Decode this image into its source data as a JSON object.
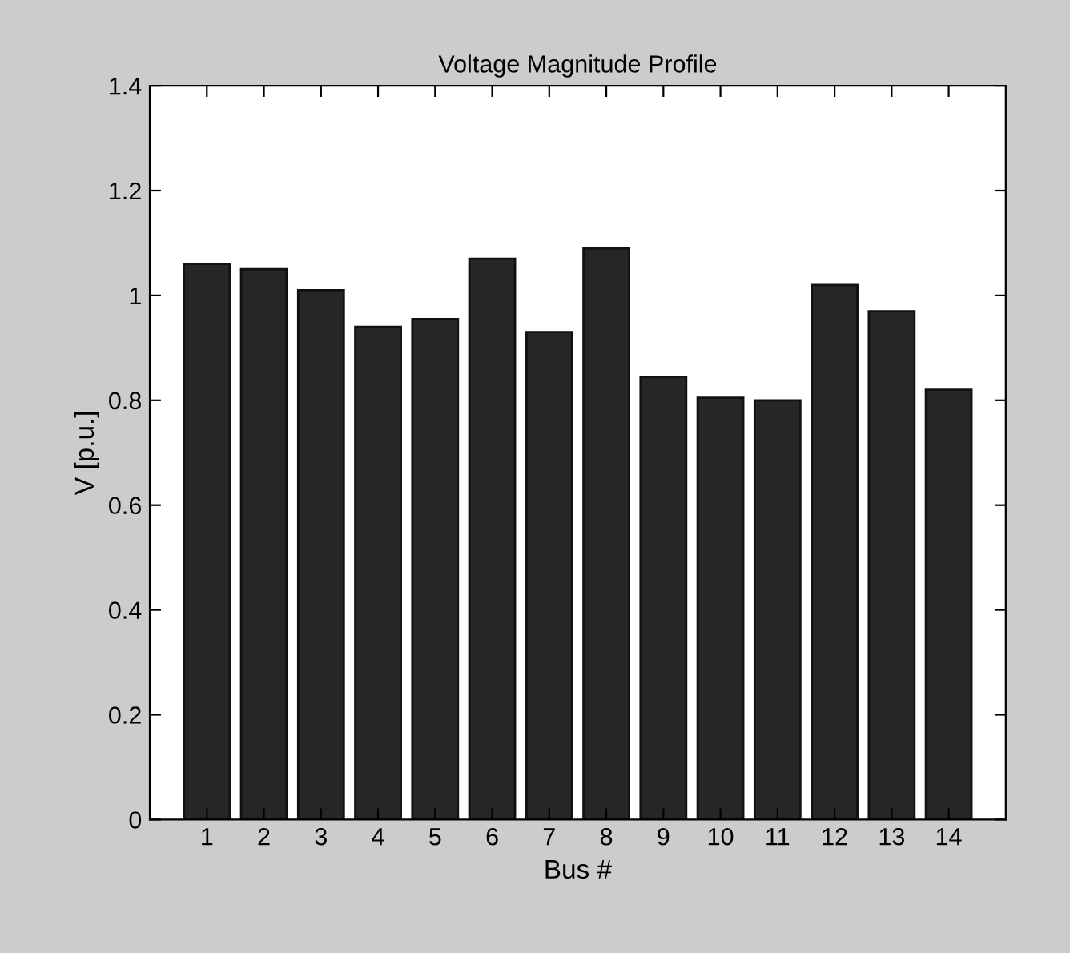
{
  "chart_data": {
    "type": "bar",
    "title": "Voltage Magnitude Profile",
    "xlabel": "Bus #",
    "ylabel": "V [p.u.]",
    "categories": [
      "1",
      "2",
      "3",
      "4",
      "5",
      "6",
      "7",
      "8",
      "9",
      "10",
      "11",
      "12",
      "13",
      "14"
    ],
    "values": [
      1.06,
      1.05,
      1.01,
      0.94,
      0.955,
      1.07,
      0.93,
      1.09,
      0.845,
      0.805,
      0.8,
      1.02,
      0.97,
      0.82
    ],
    "color": "#262626",
    "ylim": [
      0,
      1.4
    ],
    "yticks": [
      0,
      0.2,
      0.4,
      0.6,
      0.8,
      1,
      1.2,
      1.4
    ],
    "grid": false
  }
}
